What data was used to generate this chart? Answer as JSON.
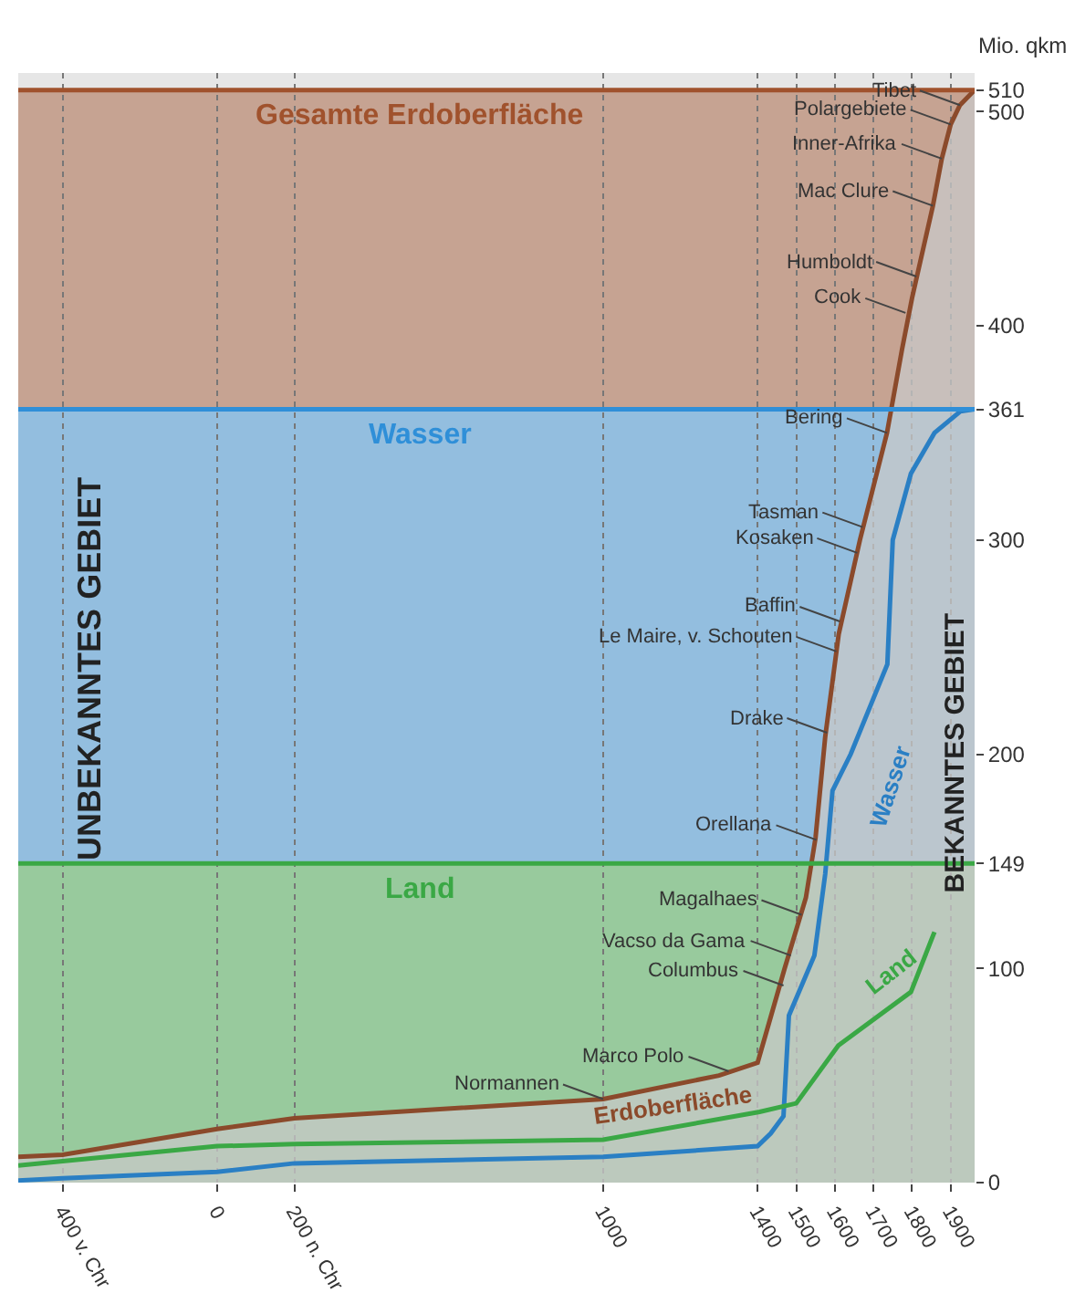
{
  "chart_data": {
    "type": "line",
    "ylabel": "Mio. qkm",
    "xlim": [
      -515,
      1962
    ],
    "ylim": [
      0,
      518
    ],
    "xticks": [
      {
        "value": -400,
        "label": "400 v. Chr"
      },
      0,
      {
        "value": 200,
        "label": "200 n. Chr"
      },
      1000,
      1400,
      1500,
      1600,
      1700,
      1800,
      1900
    ],
    "yticks": [
      0,
      100,
      149,
      200,
      300,
      361,
      400,
      500,
      510
    ],
    "grid": "x",
    "legend": false,
    "marker": "none",
    "line_style": "solid",
    "bands": [
      {
        "axis": "y",
        "from": 0,
        "to": 149,
        "label": "Land",
        "color": "#3aa845"
      },
      {
        "axis": "y",
        "from": 149,
        "to": 361,
        "label": "Wasser",
        "color": "#2f8fd8"
      },
      {
        "axis": "y",
        "from": 361,
        "to": 510,
        "label": "Gesamte Erdoberfläche",
        "color": "#a0522d"
      }
    ],
    "ref_lines": [
      {
        "axis": "y",
        "value": 149,
        "color": "#3aa845"
      },
      {
        "axis": "y",
        "value": 361,
        "color": "#2f8fd8"
      },
      {
        "axis": "y",
        "value": 510,
        "color": "#a0522d"
      }
    ],
    "series": [
      {
        "name": "Erdoberfläche",
        "type": "area",
        "color": "#8b4a2b",
        "x": [
          -515,
          -400,
          0,
          200,
          1000,
          1300,
          1400,
          1470,
          1525,
          1550,
          1575,
          1610,
          1665,
          1735,
          1774,
          1800,
          1854,
          1877,
          1900,
          1924,
          1962
        ],
        "values": [
          12,
          13,
          25,
          30,
          39,
          50,
          56,
          100,
          133,
          161,
          208,
          256,
          300,
          350,
          389,
          413,
          456,
          478,
          494,
          503,
          510
        ]
      },
      {
        "name": "Wasser",
        "color": "#2a7fc4",
        "x": [
          -515,
          -400,
          0,
          200,
          1000,
          1400,
          1434,
          1467,
          1481,
          1547,
          1575,
          1594,
          1641,
          1736,
          1750,
          1797,
          1858,
          1925,
          1962
        ],
        "values": [
          1,
          2,
          5,
          9,
          12,
          17,
          23,
          31,
          78,
          106,
          144,
          183,
          200,
          242,
          300,
          331,
          350,
          360,
          361
        ]
      },
      {
        "name": "Land",
        "color": "#3aa845",
        "x": [
          -515,
          -400,
          0,
          200,
          1000,
          1405,
          1500,
          1609,
          1797,
          1858
        ],
        "values": [
          8,
          10,
          17,
          18,
          20,
          33,
          37,
          64,
          89,
          117
        ]
      }
    ],
    "annotations": [
      "UNBEKANNTES GEBIET",
      "BEKANNTES GEBIET",
      {
        "text": "Tibet",
        "x": 1924,
        "y": 503
      },
      {
        "text": "Polargebiete",
        "x": 1900,
        "y": 494
      },
      {
        "text": "Inner-Afrika",
        "x": 1877,
        "y": 478
      },
      {
        "text": "Mac Clure",
        "x": 1854,
        "y": 456
      },
      {
        "text": "Humboldt",
        "x": 1811,
        "y": 423
      },
      {
        "text": "Cook",
        "x": 1783,
        "y": 406
      },
      {
        "text": "Bering",
        "x": 1735,
        "y": 350
      },
      {
        "text": "Tasman",
        "x": 1672,
        "y": 306
      },
      {
        "text": "Kosaken",
        "x": 1658,
        "y": 294
      },
      {
        "text": "Baffin",
        "x": 1613,
        "y": 262
      },
      {
        "text": "Le Maire, v. Schouten",
        "x": 1604,
        "y": 248
      },
      {
        "text": "Drake",
        "x": 1580,
        "y": 210
      },
      {
        "text": "Orellana",
        "x": 1552,
        "y": 160
      },
      {
        "text": "Magalhaes",
        "x": 1514,
        "y": 125
      },
      {
        "text": "Vacso da Gama",
        "x": 1486,
        "y": 106
      },
      {
        "text": "Columbus",
        "x": 1467,
        "y": 92
      },
      {
        "text": "Marco Polo",
        "x": 1325,
        "y": 52
      },
      {
        "text": "Normannen",
        "x": 1000,
        "y": 39
      }
    ]
  }
}
